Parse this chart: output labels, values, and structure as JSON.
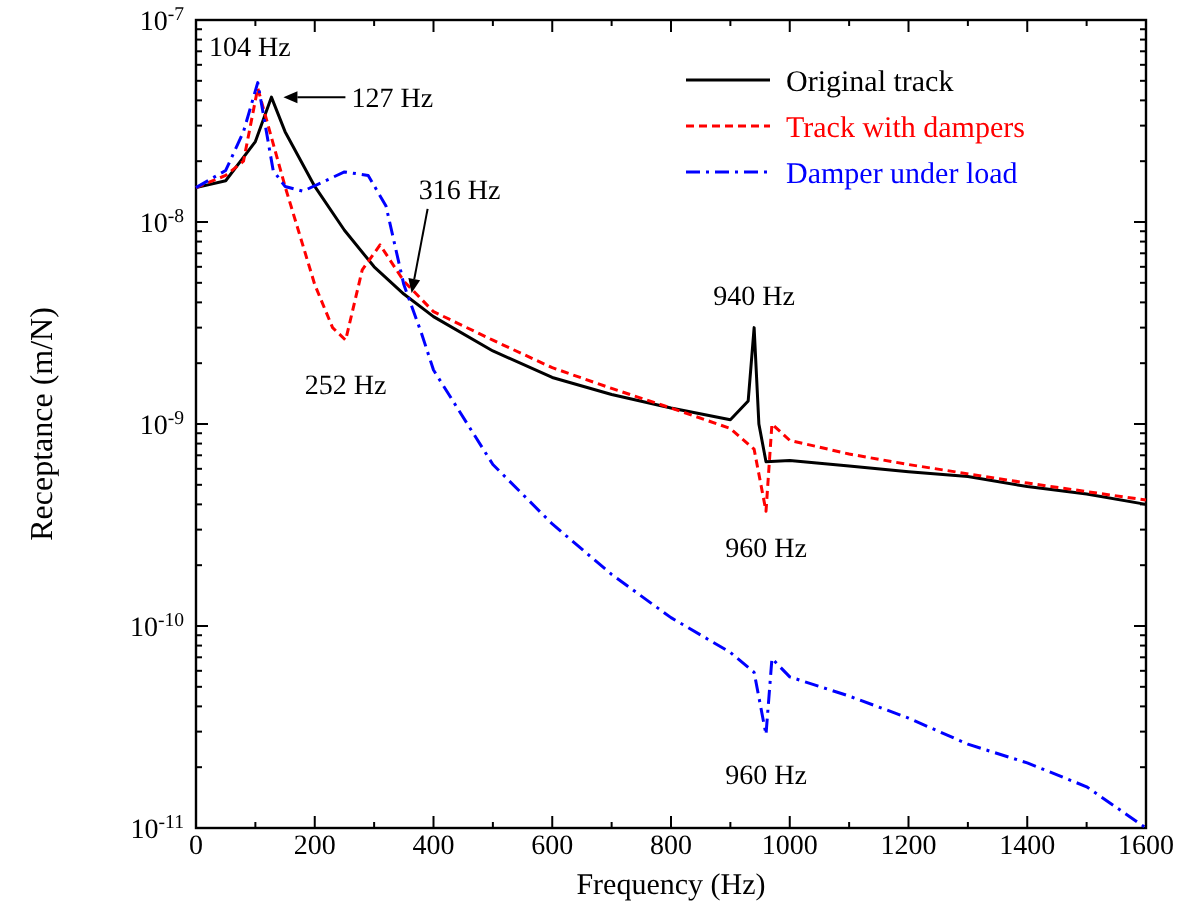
{
  "chart_data": {
    "type": "line",
    "xlabel": "Frequency (Hz)",
    "ylabel": "Receptance (m/N)",
    "log": "y",
    "grid": false,
    "legend": "top right",
    "xlim": [
      0,
      1600
    ],
    "ylim": [
      1e-11,
      1e-07
    ],
    "xticks": [
      0,
      {
        "value": 100,
        "label": null
      },
      200,
      {
        "value": 300,
        "label": null
      },
      400,
      {
        "value": 500,
        "label": null
      },
      600,
      {
        "value": 700,
        "label": null
      },
      800,
      {
        "value": 900,
        "label": null
      },
      1000,
      {
        "value": 1100,
        "label": null
      },
      1200,
      {
        "value": 1300,
        "label": null
      },
      1400,
      {
        "value": 1500,
        "label": null
      },
      1600
    ],
    "yticks": [
      {
        "value": 1e-11,
        "label": "10$^{-11}$"
      },
      {
        "value": 2e-11,
        "label": null
      },
      {
        "value": 3e-11,
        "label": null
      },
      {
        "value": 4e-11,
        "label": null
      },
      {
        "value": 5e-11,
        "label": null
      },
      {
        "value": 6e-11,
        "label": null
      },
      {
        "value": 7e-11,
        "label": null
      },
      {
        "value": 8e-11,
        "label": null
      },
      {
        "value": 9e-11,
        "label": null
      },
      {
        "value": 1e-10,
        "label": "10$^{-10}$"
      },
      {
        "value": 2e-10,
        "label": null
      },
      {
        "value": 3e-10,
        "label": null
      },
      {
        "value": 4e-10,
        "label": null
      },
      {
        "value": 5e-10,
        "label": null
      },
      {
        "value": 6e-10,
        "label": null
      },
      {
        "value": 7e-10,
        "label": null
      },
      {
        "value": 8e-10,
        "label": null
      },
      {
        "value": 9e-10,
        "label": null
      },
      {
        "value": 1e-09,
        "label": "10$^{-9}$"
      },
      {
        "value": 2e-09,
        "label": null
      },
      {
        "value": 3e-09,
        "label": null
      },
      {
        "value": 4e-09,
        "label": null
      },
      {
        "value": 5e-09,
        "label": null
      },
      {
        "value": 6e-09,
        "label": null
      },
      {
        "value": 7e-09,
        "label": null
      },
      {
        "value": 8e-09,
        "label": null
      },
      {
        "value": 9e-09,
        "label": null
      },
      {
        "value": 1e-08,
        "label": "10$^{-8}$"
      },
      {
        "value": 2e-08,
        "label": null
      },
      {
        "value": 3e-08,
        "label": null
      },
      {
        "value": 4e-08,
        "label": null
      },
      {
        "value": 5e-08,
        "label": null
      },
      {
        "value": 6e-08,
        "label": null
      },
      {
        "value": 7e-08,
        "label": null
      },
      {
        "value": 8e-08,
        "label": null
      },
      {
        "value": 9e-08,
        "label": null
      },
      {
        "value": 1e-07,
        "label": "10$^{-7}$"
      }
    ],
    "series": [
      {
        "name": "Original track",
        "color": "#000000",
        "line_style": "solid",
        "x": [
          0,
          50,
          100,
          127,
          150,
          200,
          250,
          300,
          350,
          400,
          500,
          600,
          700,
          800,
          900,
          930,
          940,
          948,
          960,
          1000,
          1100,
          1200,
          1300,
          1400,
          1500,
          1600
        ],
        "values": [
          1.48e-08,
          1.6e-08,
          2.5e-08,
          4.15e-08,
          2.8e-08,
          1.5e-08,
          9.1e-09,
          6e-09,
          4.4e-09,
          3.4e-09,
          2.3e-09,
          1.7e-09,
          1.4e-09,
          1.2e-09,
          1.05e-09,
          1.3e-09,
          3e-09,
          1e-09,
          6.5e-10,
          6.6e-10,
          6.2e-10,
          5.8e-10,
          5.5e-10,
          4.9e-10,
          4.5e-10,
          4e-10
        ]
      },
      {
        "name": "Track with dampers",
        "color": "#ff0000",
        "line_style": "dashed",
        "x": [
          0,
          50,
          80,
          104,
          150,
          200,
          230,
          252,
          280,
          310,
          350,
          400,
          500,
          600,
          700,
          800,
          900,
          940,
          960,
          970,
          1000,
          1100,
          1200,
          1400,
          1600
        ],
        "values": [
          1.48e-08,
          1.7e-08,
          2e-08,
          4.6e-08,
          1.5e-08,
          4.9e-09,
          3e-09,
          2.6e-09,
          5.8e-09,
          7.7e-09,
          5.1e-09,
          3.6e-09,
          2.6e-09,
          1.9e-09,
          1.5e-09,
          1.2e-09,
          9.5e-10,
          7.5e-10,
          3.7e-10,
          1e-09,
          8.3e-10,
          7.1e-10,
          6.3e-10,
          5.1e-10,
          4.2e-10
        ]
      },
      {
        "name": "Damper under load",
        "color": "#0000ff",
        "line_style": "dashdot",
        "x": [
          0,
          50,
          80,
          104,
          130,
          150,
          180,
          210,
          250,
          290,
          320,
          350,
          380,
          400,
          500,
          600,
          700,
          800,
          900,
          940,
          960,
          970,
          1000,
          1100,
          1200,
          1300,
          1400,
          1500,
          1600
        ],
        "values": [
          1.48e-08,
          1.8e-08,
          2.8e-08,
          4.9e-08,
          1.8e-08,
          1.5e-08,
          1.42e-08,
          1.56e-08,
          1.77e-08,
          1.7e-08,
          1.2e-08,
          4.9e-09,
          2.8e-09,
          1.85e-09,
          6.3e-10,
          3.2e-10,
          1.8e-10,
          1.1e-10,
          7.4e-11,
          5.9e-11,
          2.9e-11,
          6.9e-11,
          5.6e-11,
          4.5e-11,
          3.5e-11,
          2.6e-11,
          2.1e-11,
          1.6e-11,
          1e-11
        ]
      }
    ],
    "annotations": [
      {
        "text": "104 Hz",
        "x": 104,
        "y": 4.9e-08
      },
      {
        "text": "127 Hz",
        "x": 127,
        "y": 4.15e-08
      },
      {
        "text": "252 Hz",
        "x": 252,
        "y": 2.6e-09
      },
      {
        "text": "316 Hz",
        "x": 316,
        "y": 7.7e-09
      },
      {
        "text": "940 Hz",
        "x": 940,
        "y": 3e-09
      },
      {
        "text": "960 Hz",
        "x": 960,
        "y": 3.7e-10
      },
      {
        "text": "960 Hz",
        "x": 960,
        "y": 2.9e-11
      }
    ]
  }
}
